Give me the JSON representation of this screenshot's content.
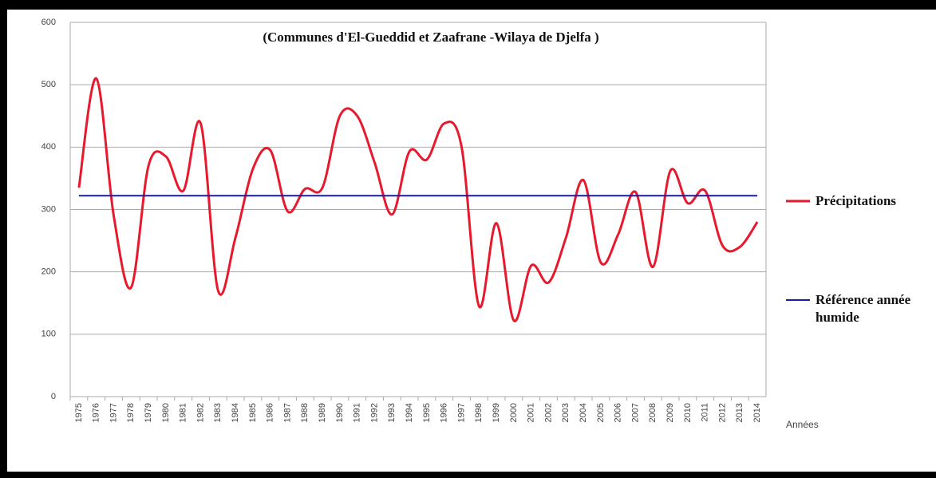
{
  "chart_data": {
    "type": "line",
    "title": "(Communes d'El-Gueddid et Zaafrane -Wilaya de Djelfa )",
    "x_label": "Années",
    "categories": [
      "1975",
      "1976",
      "1977",
      "1978",
      "1979",
      "1980",
      "1981",
      "1982",
      "1983",
      "1984",
      "1985",
      "1986",
      "1987",
      "1988",
      "1989",
      "1990",
      "1991",
      "1992",
      "1993",
      "1994",
      "1995",
      "1996",
      "1997",
      "1998",
      "1999",
      "2000",
      "2001",
      "2002",
      "2003",
      "2004",
      "2005",
      "2006",
      "2007",
      "2008",
      "2009",
      "2010",
      "2011",
      "2012",
      "2013",
      "2014"
    ],
    "series": [
      {
        "name": "Précipitations",
        "color": "#e8192c",
        "smooth": true,
        "values": [
          335,
          510,
          290,
          175,
          370,
          385,
          330,
          438,
          170,
          255,
          365,
          395,
          297,
          333,
          335,
          450,
          450,
          375,
          292,
          393,
          380,
          438,
          400,
          145,
          278,
          122,
          210,
          183,
          255,
          347,
          215,
          260,
          328,
          208,
          362,
          310,
          330,
          242,
          240,
          280
        ]
      },
      {
        "name": "Référence année humide",
        "color": "#1a1aa6",
        "smooth": false,
        "values": [
          322,
          322,
          322,
          322,
          322,
          322,
          322,
          322,
          322,
          322,
          322,
          322,
          322,
          322,
          322,
          322,
          322,
          322,
          322,
          322,
          322,
          322,
          322,
          322,
          322,
          322,
          322,
          322,
          322,
          322,
          322,
          322,
          322,
          322,
          322,
          322,
          322,
          322,
          322,
          322
        ]
      }
    ],
    "ylim": [
      0,
      600
    ],
    "yticks": [
      0,
      100,
      200,
      300,
      400,
      500,
      600
    ],
    "grid": true,
    "legend": "right"
  }
}
